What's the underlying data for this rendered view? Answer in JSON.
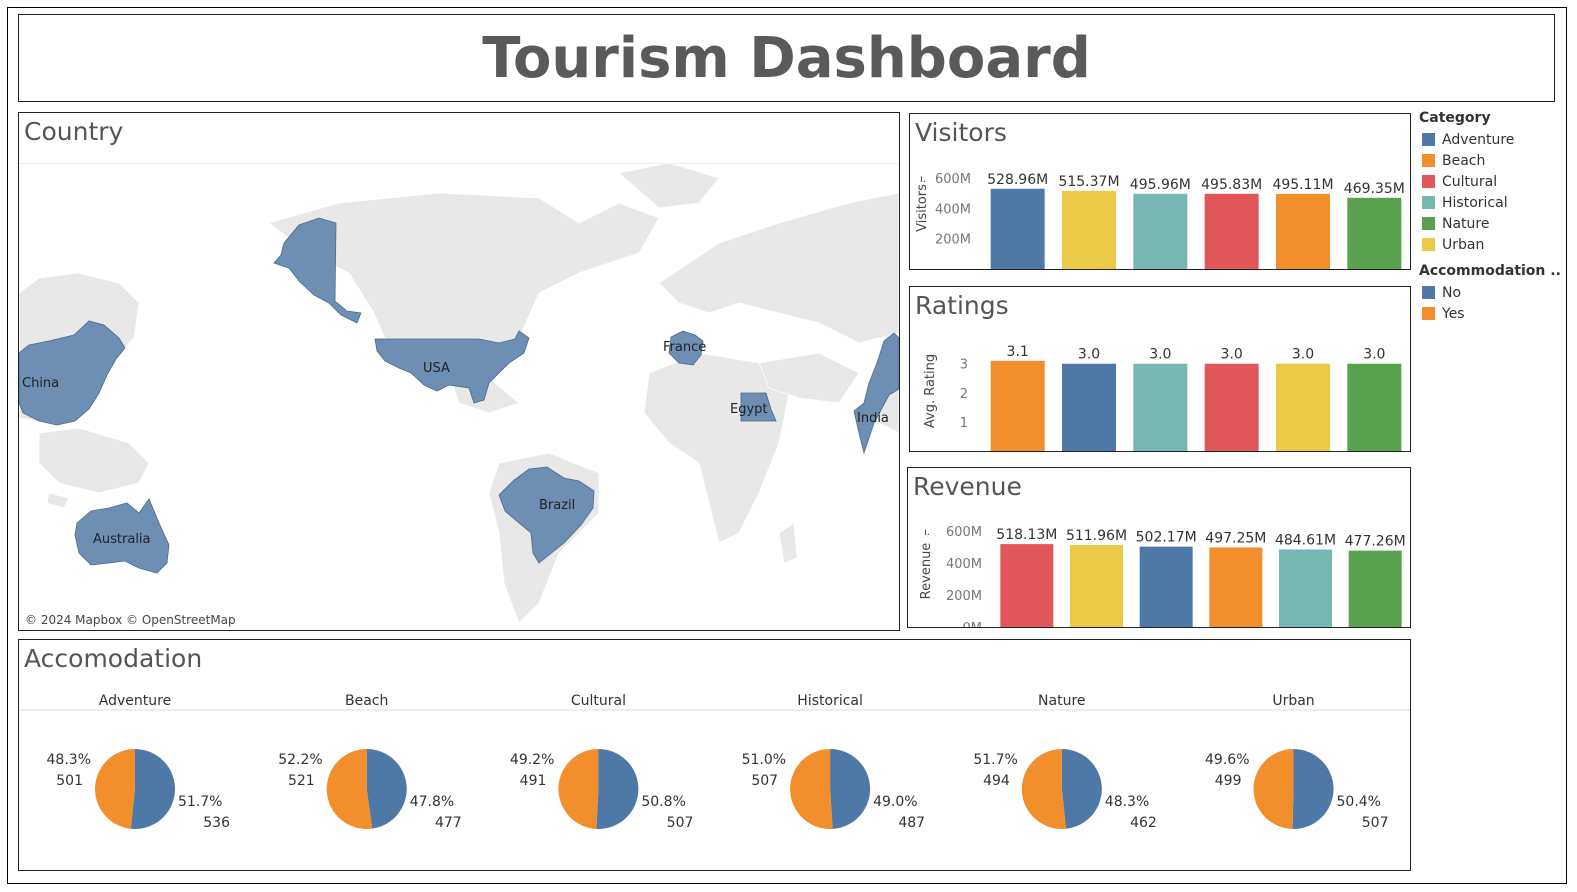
{
  "title": "Tourism Dashboard",
  "colors": {
    "Adventure": "#4e79a7",
    "Beach": "#f28e2b",
    "Cultural": "#e15759",
    "Historical": "#76b7b2",
    "Nature": "#59a14f",
    "Urban": "#edc948",
    "No": "#4e79a7",
    "Yes": "#f28e2b"
  },
  "map": {
    "title": "Country",
    "attribution": "© 2024 Mapbox © OpenStreetMap",
    "countries": [
      "China",
      "USA",
      "France",
      "Egypt",
      "India",
      "Brazil",
      "Australia"
    ]
  },
  "legend": {
    "category_title": "Category",
    "categories": [
      "Adventure",
      "Beach",
      "Cultural",
      "Historical",
      "Nature",
      "Urban"
    ],
    "accommodation_title": "Accommodation ..",
    "accommodation": [
      "No",
      "Yes"
    ]
  },
  "chart_data": [
    {
      "id": "visitors",
      "type": "bar",
      "title": "Visitors",
      "ylabel": "Visitors",
      "categories": [
        "Adventure",
        "Urban",
        "Historical",
        "Cultural",
        "Beach",
        "Nature"
      ],
      "values": [
        528.96,
        515.37,
        495.96,
        495.83,
        495.11,
        469.35
      ],
      "labels": [
        "528.96M",
        "515.37M",
        "495.96M",
        "495.83M",
        "495.11M",
        "469.35M"
      ],
      "ticks": [
        200,
        400,
        600
      ],
      "tick_labels": [
        "200M",
        "400M",
        "600M"
      ],
      "ylim": [
        0,
        600
      ]
    },
    {
      "id": "ratings",
      "type": "bar",
      "title": "Ratings",
      "ylabel": "Avg. Rating",
      "categories": [
        "Beach",
        "Adventure",
        "Historical",
        "Cultural",
        "Urban",
        "Nature"
      ],
      "values": [
        3.1,
        3.0,
        3.0,
        3.0,
        3.0,
        3.0
      ],
      "labels": [
        "3.1",
        "3.0",
        "3.0",
        "3.0",
        "3.0",
        "3.0"
      ],
      "ticks": [
        1,
        2,
        3
      ],
      "tick_labels": [
        "1",
        "2",
        "3"
      ],
      "ylim": [
        0,
        3.3
      ]
    },
    {
      "id": "revenue",
      "type": "bar",
      "title": "Revenue",
      "ylabel": "Revenue",
      "categories": [
        "Cultural",
        "Urban",
        "Adventure",
        "Beach",
        "Historical",
        "Nature"
      ],
      "values": [
        518.13,
        511.96,
        502.17,
        497.25,
        484.61,
        477.26
      ],
      "labels": [
        "518.13M",
        "511.96M",
        "502.17M",
        "497.25M",
        "484.61M",
        "477.26M"
      ],
      "ticks": [
        0,
        200,
        400,
        600
      ],
      "tick_labels": [
        "0M",
        "200M",
        "400M",
        "600M"
      ],
      "ylim": [
        0,
        600
      ]
    },
    {
      "id": "accomodation",
      "type": "pie",
      "title": "Accomodation",
      "series_names": [
        "No",
        "Yes"
      ],
      "pies": [
        {
          "name": "Adventure",
          "no": 536,
          "yes": 501,
          "no_pct": "51.7%",
          "yes_pct": "48.3%"
        },
        {
          "name": "Beach",
          "no": 477,
          "yes": 521,
          "no_pct": "47.8%",
          "yes_pct": "52.2%"
        },
        {
          "name": "Cultural",
          "no": 507,
          "yes": 491,
          "no_pct": "50.8%",
          "yes_pct": "49.2%"
        },
        {
          "name": "Historical",
          "no": 487,
          "yes": 507,
          "no_pct": "49.0%",
          "yes_pct": "51.0%"
        },
        {
          "name": "Nature",
          "no": 462,
          "yes": 494,
          "no_pct": "48.3%",
          "yes_pct": "51.7%"
        },
        {
          "name": "Urban",
          "no": 507,
          "yes": 499,
          "no_pct": "50.4%",
          "yes_pct": "49.6%"
        }
      ]
    }
  ]
}
